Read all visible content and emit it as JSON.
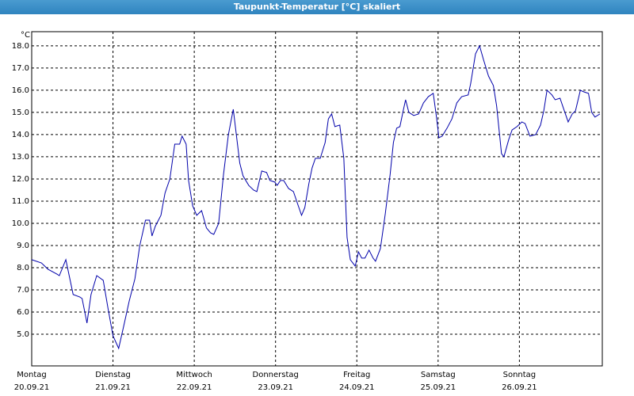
{
  "chart_data": {
    "type": "line",
    "title": "Taupunkt-Temperatur [°C] skaliert",
    "y_unit": "°C",
    "x": [
      0,
      0.12,
      0.2,
      0.31,
      0.34,
      0.42,
      0.51,
      0.59,
      0.62,
      0.68,
      0.73,
      0.8,
      0.88,
      0.94,
      1.0,
      1.07,
      1.14,
      1.2,
      1.27,
      1.33,
      1.4,
      1.45,
      1.48,
      1.52,
      1.59,
      1.64,
      1.7,
      1.76,
      1.82,
      1.85,
      1.9,
      1.93,
      1.98,
      2.03,
      2.09,
      2.15,
      2.2,
      2.24,
      2.3,
      2.36,
      2.42,
      2.48,
      2.56,
      2.6,
      2.67,
      2.73,
      2.77,
      2.83,
      2.89,
      2.93,
      2.99,
      3.02,
      3.06,
      3.1,
      3.16,
      3.22,
      3.26,
      3.32,
      3.36,
      3.41,
      3.45,
      3.49,
      3.55,
      3.61,
      3.65,
      3.69,
      3.73,
      3.79,
      3.84,
      3.88,
      3.92,
      3.98,
      4.02,
      4.06,
      4.1,
      4.15,
      4.2,
      4.23,
      4.29,
      4.35,
      4.41,
      4.45,
      4.49,
      4.53,
      4.57,
      4.6,
      4.64,
      4.7,
      4.76,
      4.82,
      4.88,
      4.94,
      4.98,
      5.01,
      5.05,
      5.11,
      5.17,
      5.23,
      5.29,
      5.37,
      5.4,
      5.46,
      5.51,
      5.56,
      5.62,
      5.68,
      5.72,
      5.78,
      5.81,
      5.87,
      5.91,
      5.97,
      6.03,
      6.07,
      6.13,
      6.2,
      6.26,
      6.3,
      6.34,
      6.4,
      6.44,
      6.5,
      6.54,
      6.6,
      6.65,
      6.69,
      6.75,
      6.79,
      6.85,
      6.89,
      6.93,
      6.99
    ],
    "series": [
      {
        "color": "#0000aa",
        "values": [
          8.36,
          8.21,
          7.93,
          7.71,
          7.64,
          8.36,
          6.79,
          6.68,
          6.61,
          5.5,
          6.79,
          7.64,
          7.43,
          6.14,
          4.93,
          4.36,
          5.5,
          6.5,
          7.5,
          9.0,
          10.14,
          10.14,
          9.43,
          9.86,
          10.36,
          11.36,
          12.0,
          13.57,
          13.57,
          13.93,
          13.57,
          11.93,
          10.79,
          10.36,
          10.57,
          9.79,
          9.57,
          9.5,
          10.0,
          12.21,
          14.0,
          15.14,
          12.71,
          12.14,
          11.71,
          11.5,
          11.43,
          12.36,
          12.29,
          11.93,
          11.86,
          11.71,
          11.93,
          11.93,
          11.57,
          11.43,
          11.0,
          10.36,
          10.71,
          11.79,
          12.5,
          12.93,
          12.93,
          13.64,
          14.71,
          14.93,
          14.36,
          14.43,
          12.93,
          9.36,
          8.36,
          8.07,
          8.71,
          8.43,
          8.43,
          8.79,
          8.43,
          8.29,
          8.86,
          10.43,
          12.21,
          13.64,
          14.29,
          14.36,
          15.07,
          15.57,
          15.0,
          14.86,
          14.93,
          15.43,
          15.71,
          15.86,
          14.79,
          13.86,
          13.93,
          14.29,
          14.71,
          15.43,
          15.71,
          15.79,
          16.29,
          17.64,
          18.0,
          17.36,
          16.64,
          16.21,
          15.29,
          13.14,
          13.0,
          13.79,
          14.21,
          14.36,
          14.57,
          14.5,
          13.93,
          14.0,
          14.43,
          15.07,
          16.0,
          15.79,
          15.57,
          15.64,
          15.21,
          14.57,
          14.93,
          15.07,
          16.0,
          15.93,
          15.86,
          15.0,
          14.79,
          14.93
        ]
      }
    ],
    "xlim": [
      0,
      7.02
    ],
    "xticks": [
      {
        "value": 0,
        "label": "Montag"
      },
      {
        "value": 1,
        "label": "Dienstag"
      },
      {
        "value": 2,
        "label": "Mittwoch"
      },
      {
        "value": 3,
        "label": "Donnerstag"
      },
      {
        "value": 4,
        "label": "Freitag"
      },
      {
        "value": 5,
        "label": "Samstag"
      },
      {
        "value": 6,
        "label": "Sonntag"
      }
    ],
    "xtick_dates": [
      "20.09.21",
      "21.09.21",
      "22.09.21",
      "23.09.21",
      "24.09.21",
      "25.09.21",
      "26.09.21"
    ],
    "ylim": [
      3.57,
      18.64
    ],
    "yticks": [
      {
        "value": 18,
        "label": "18.0"
      },
      {
        "value": 17,
        "label": "17.0"
      },
      {
        "value": 16,
        "label": "16.0"
      },
      {
        "value": 15,
        "label": "15.0"
      },
      {
        "value": 14,
        "label": "14.0"
      },
      {
        "value": 13,
        "label": "13.0"
      },
      {
        "value": 12,
        "label": "12.0"
      },
      {
        "value": 11,
        "label": "11.0"
      },
      {
        "value": 10,
        "label": "10.0"
      },
      {
        "value": 9,
        "label": "9.0"
      },
      {
        "value": 8,
        "label": "8.0"
      },
      {
        "value": 7,
        "label": "7.0"
      },
      {
        "value": 6,
        "label": "6.0"
      },
      {
        "value": 5,
        "label": "5.0"
      }
    ],
    "grid": true
  }
}
